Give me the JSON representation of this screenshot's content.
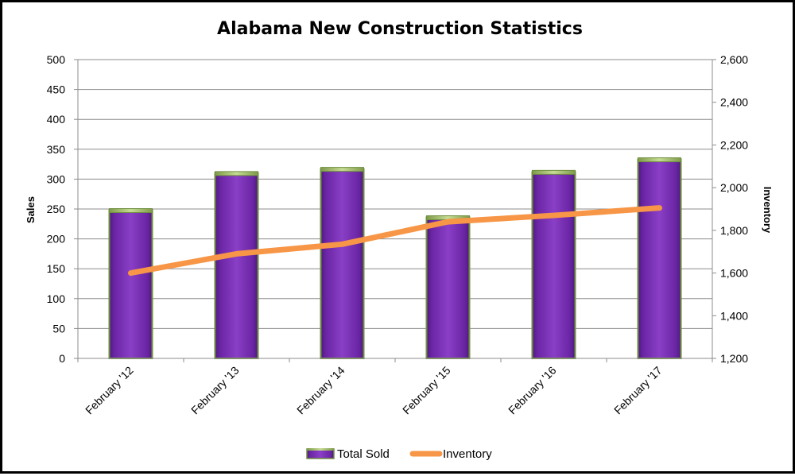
{
  "chart_data": {
    "type": "bar",
    "title": "Alabama New Construction Statistics",
    "categories": [
      "February '12",
      "February '13",
      "February '14",
      "February '15",
      "February '16",
      "February '17"
    ],
    "series": [
      {
        "name": "Total Sold",
        "type": "bar",
        "axis": "left",
        "values": [
          248,
          310,
          317,
          236,
          312,
          333
        ],
        "color": "#7a2fb5"
      },
      {
        "name": "Inventory",
        "type": "line",
        "axis": "right",
        "values": [
          1600,
          1690,
          1735,
          1840,
          1870,
          1905
        ],
        "color": "#f79646"
      }
    ],
    "ylabel": "Sales",
    "ylabel_right": "Inventory",
    "ylim": [
      0,
      500
    ],
    "ylim_right": [
      1200,
      2600
    ],
    "yticks": [
      "0",
      "50",
      "100",
      "150",
      "200",
      "250",
      "300",
      "350",
      "400",
      "450",
      "500"
    ],
    "yticks_right": [
      "1,200",
      "1,400",
      "1,600",
      "1,800",
      "2,000",
      "2,200",
      "2,400",
      "2,600"
    ],
    "grid": true,
    "legend_position": "bottom"
  }
}
